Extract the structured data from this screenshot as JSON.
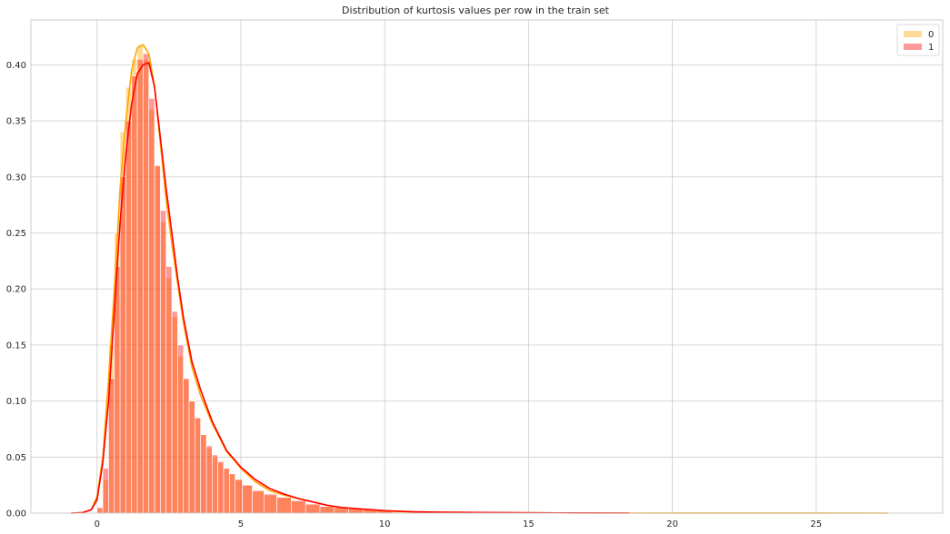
{
  "chart_data": {
    "type": "bar",
    "title": "Distribution of kurtosis values per row in the train set",
    "xlabel": "",
    "ylabel": "",
    "xlim": [
      -2.3,
      29.4
    ],
    "ylim": [
      0,
      0.44
    ],
    "x_ticks": [
      0,
      5,
      10,
      15,
      20,
      25
    ],
    "x_tick_labels": [
      "0",
      "5",
      "10",
      "15",
      "20",
      "25"
    ],
    "y_ticks": [
      0,
      0.05,
      0.1,
      0.15,
      0.2,
      0.25,
      0.3,
      0.35,
      0.4
    ],
    "y_tick_labels": [
      "0.00",
      "0.05",
      "0.10",
      "0.15",
      "0.20",
      "0.25",
      "0.30",
      "0.35",
      "0.40"
    ],
    "grid": true,
    "legend_position": "top-right",
    "series": [
      {
        "name": "0",
        "color": "#ffa500",
        "bar_alpha": 0.4,
        "bins_x": [
          0.1,
          0.3,
          0.5,
          0.7,
          0.9,
          1.1,
          1.3,
          1.5,
          1.7,
          1.9,
          2.1,
          2.3,
          2.5,
          2.7,
          2.9,
          3.1,
          3.3,
          3.5,
          3.7,
          3.9,
          4.1,
          4.3,
          4.5,
          4.7,
          4.9,
          5.2,
          5.6,
          6.0,
          6.5,
          7.0,
          7.5,
          8.0,
          8.5,
          9.0,
          9.5,
          10.0,
          11.0
        ],
        "bins_density": [
          0.004,
          0.03,
          0.15,
          0.25,
          0.34,
          0.38,
          0.405,
          0.418,
          0.405,
          0.36,
          0.31,
          0.26,
          0.21,
          0.175,
          0.14,
          0.12,
          0.1,
          0.085,
          0.07,
          0.058,
          0.05,
          0.045,
          0.04,
          0.035,
          0.03,
          0.025,
          0.02,
          0.016,
          0.014,
          0.011,
          0.008,
          0.006,
          0.005,
          0.004,
          0.003,
          0.002,
          0.0012
        ],
        "kde_x": [
          -0.9,
          -0.5,
          -0.2,
          0.0,
          0.2,
          0.4,
          0.6,
          0.8,
          1.0,
          1.2,
          1.4,
          1.6,
          1.8,
          2.0,
          2.2,
          2.4,
          2.6,
          2.8,
          3.0,
          3.3,
          3.6,
          4.0,
          4.5,
          5.0,
          5.5,
          6.0,
          6.5,
          7.0,
          7.5,
          8.0,
          8.5,
          9.0,
          10.0,
          11.0,
          12.0,
          14.0,
          16.0,
          18.5,
          22.0,
          27.5
        ],
        "kde_y": [
          0.0,
          0.0005,
          0.003,
          0.015,
          0.05,
          0.12,
          0.2,
          0.29,
          0.35,
          0.395,
          0.415,
          0.418,
          0.41,
          0.38,
          0.33,
          0.28,
          0.24,
          0.205,
          0.17,
          0.13,
          0.105,
          0.08,
          0.055,
          0.04,
          0.028,
          0.02,
          0.016,
          0.013,
          0.01,
          0.007,
          0.005,
          0.004,
          0.002,
          0.0012,
          0.0008,
          0.0004,
          0.0002,
          0.0001,
          5e-05,
          0.0
        ]
      },
      {
        "name": "1",
        "color": "#ff0000",
        "bar_alpha": 0.4,
        "bins_x": [
          0.1,
          0.3,
          0.5,
          0.7,
          0.9,
          1.1,
          1.3,
          1.5,
          1.7,
          1.9,
          2.1,
          2.3,
          2.5,
          2.7,
          2.9,
          3.1,
          3.3,
          3.5,
          3.7,
          3.9,
          4.1,
          4.3,
          4.5,
          4.7,
          4.9,
          5.2,
          5.6,
          6.0,
          6.5,
          7.0,
          7.5,
          8.0,
          8.5,
          9.0,
          9.5,
          10.0
        ],
        "bins_density": [
          0.005,
          0.04,
          0.12,
          0.22,
          0.3,
          0.35,
          0.39,
          0.405,
          0.41,
          0.37,
          0.31,
          0.27,
          0.22,
          0.18,
          0.15,
          0.12,
          0.1,
          0.085,
          0.07,
          0.06,
          0.052,
          0.046,
          0.04,
          0.035,
          0.03,
          0.025,
          0.02,
          0.017,
          0.014,
          0.011,
          0.008,
          0.006,
          0.005,
          0.004,
          0.003,
          0.002
        ],
        "kde_x": [
          -0.9,
          -0.5,
          -0.2,
          0.0,
          0.2,
          0.4,
          0.6,
          0.8,
          1.0,
          1.2,
          1.4,
          1.6,
          1.8,
          2.0,
          2.2,
          2.4,
          2.6,
          2.8,
          3.0,
          3.3,
          3.6,
          4.0,
          4.5,
          5.0,
          5.5,
          6.0,
          6.5,
          7.0,
          7.5,
          8.0,
          8.5,
          9.0,
          10.0,
          11.0,
          12.0,
          14.0,
          16.0,
          18.5
        ],
        "kde_y": [
          0.0,
          0.0005,
          0.003,
          0.012,
          0.045,
          0.1,
          0.18,
          0.26,
          0.32,
          0.365,
          0.392,
          0.4,
          0.402,
          0.38,
          0.335,
          0.29,
          0.25,
          0.21,
          0.175,
          0.135,
          0.11,
          0.082,
          0.056,
          0.041,
          0.03,
          0.022,
          0.017,
          0.013,
          0.01,
          0.007,
          0.005,
          0.004,
          0.0022,
          0.0012,
          0.0008,
          0.0005,
          0.0002,
          0.0001
        ]
      }
    ]
  }
}
